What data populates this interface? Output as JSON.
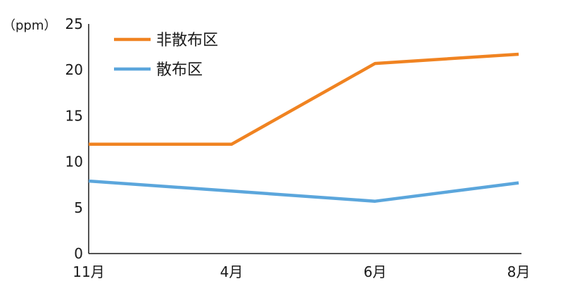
{
  "chart_data": {
    "type": "line",
    "title": "",
    "xlabel": "",
    "ylabel": "（ppm）",
    "categories": [
      "11月",
      "4月",
      "6月",
      "8月"
    ],
    "ylim": [
      0,
      25
    ],
    "yticks": [
      "0",
      "5",
      "10",
      "15",
      "20",
      "25"
    ],
    "grid": false,
    "legend_position": "top-left",
    "series": [
      {
        "name": "非散布区",
        "color": "#f08321",
        "values": [
          11.9,
          11.9,
          20.7,
          21.7
        ]
      },
      {
        "name": "散布区",
        "color": "#5ba6dc",
        "values": [
          7.9,
          6.8,
          5.7,
          7.7
        ]
      }
    ]
  }
}
